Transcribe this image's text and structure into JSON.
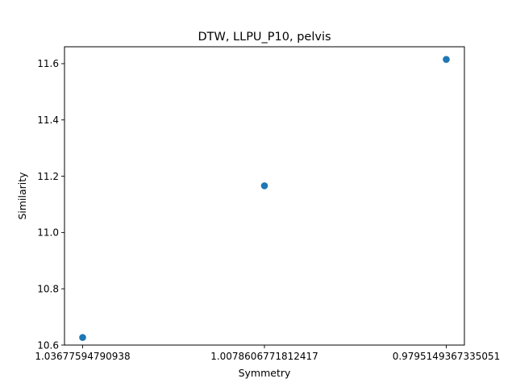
{
  "chart_data": {
    "type": "scatter",
    "title": "DTW, LLPU_P10, pelvis",
    "xlabel": "Symmetry",
    "ylabel": "Similarity",
    "categories": [
      "1.03677594790938",
      "1.0078606771812417",
      "0.9795149367335051"
    ],
    "series": [
      {
        "values": [
          10.627,
          11.166,
          11.615
        ],
        "color": "#1f77b4"
      }
    ],
    "ylim": [
      10.6,
      11.66
    ],
    "yticks": [
      "10.6",
      "10.8",
      "11.0",
      "11.2",
      "11.4",
      "11.6"
    ],
    "grid": false,
    "legend": "none"
  }
}
